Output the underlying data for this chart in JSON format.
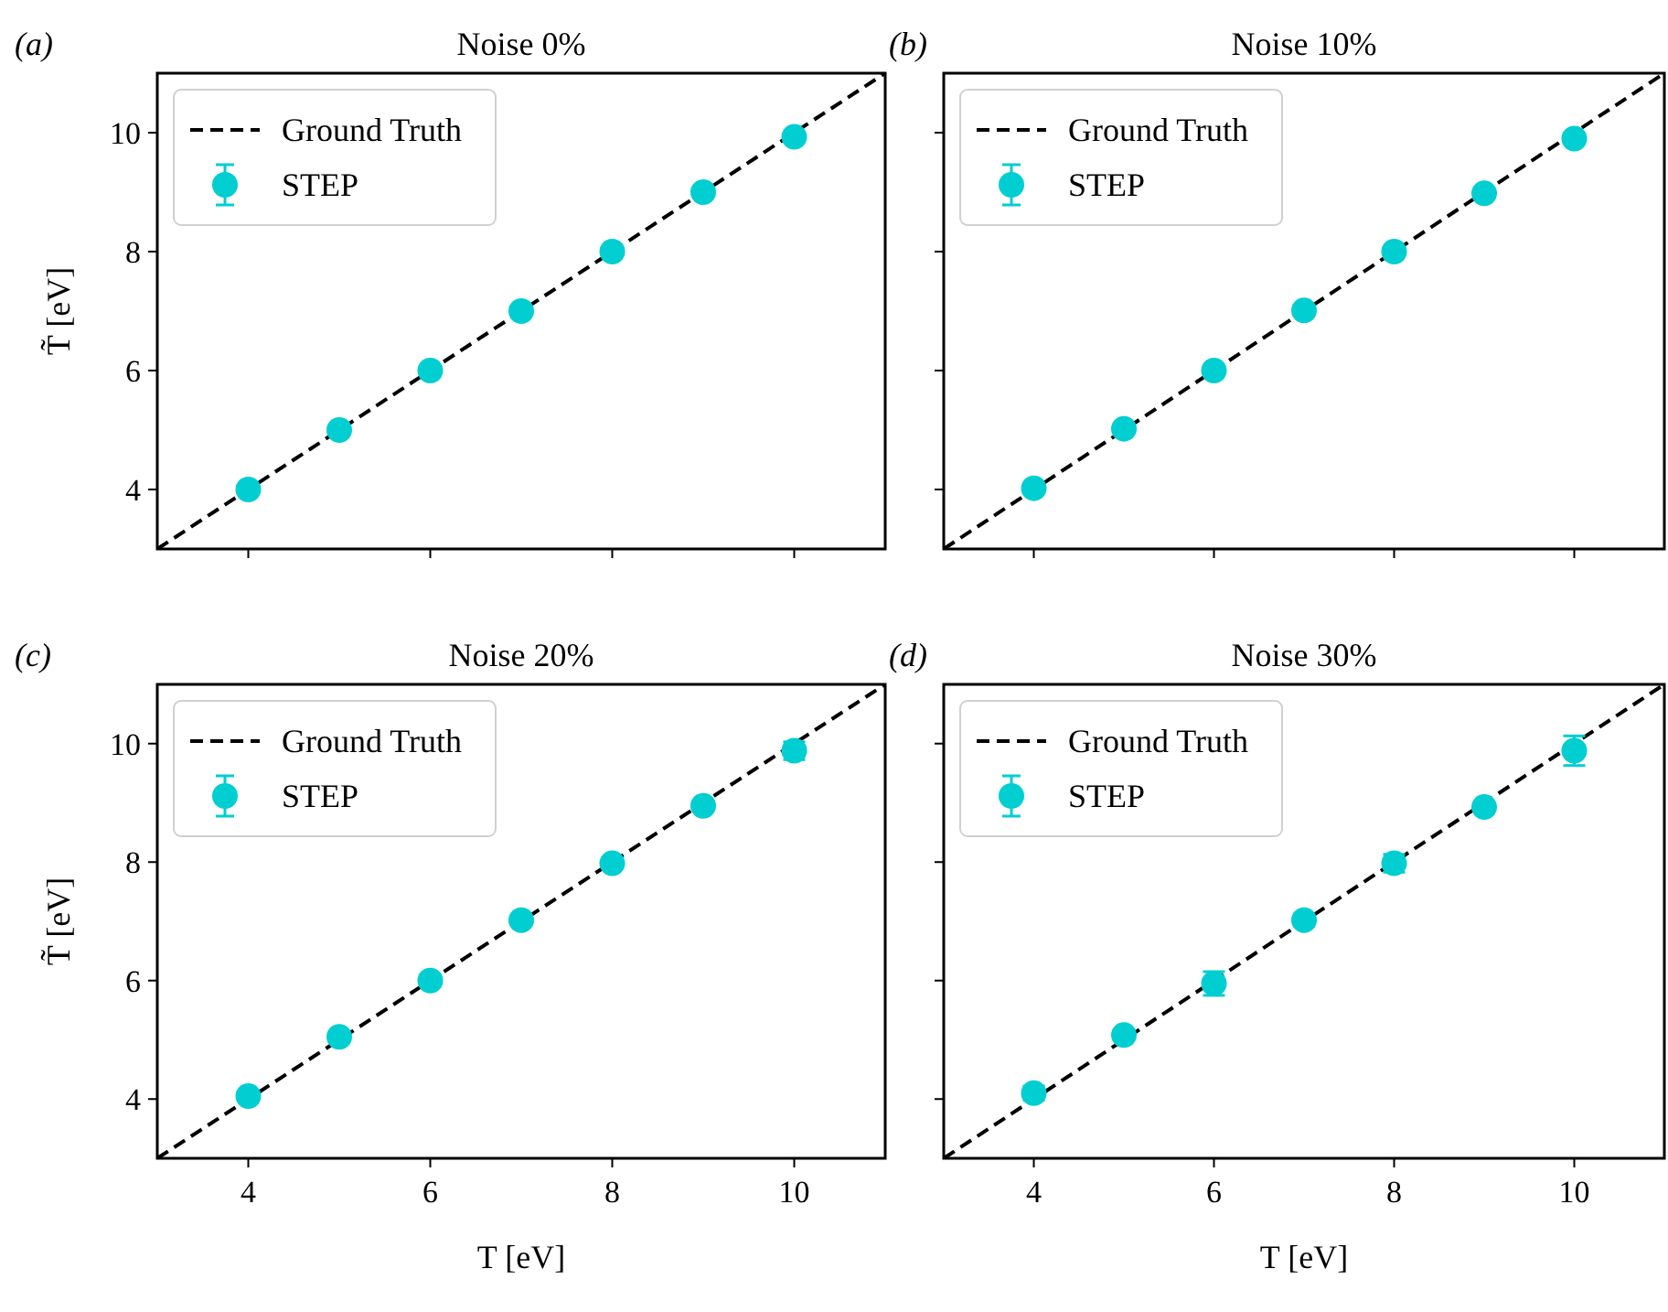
{
  "chart_data": [
    {
      "type": "scatter",
      "title": "Noise 0%",
      "annotations": [
        "(a)"
      ],
      "ylabel": "T̃ [eV]",
      "xlim": [
        3,
        11
      ],
      "ylim": [
        3,
        11
      ],
      "xticks": [
        4,
        6,
        8,
        10
      ],
      "yticks": [
        4,
        6,
        8,
        10
      ],
      "tick_labels": "y",
      "legend": "top left",
      "grid": false,
      "series": [
        {
          "name": "Ground Truth",
          "type": "line",
          "color": "#000000",
          "line_style": "dashed",
          "x": [
            3,
            11
          ],
          "values": [
            3,
            11
          ]
        },
        {
          "name": "STEP",
          "color": "#00ced1",
          "marker": "circle",
          "x": [
            4,
            5,
            6,
            7,
            8,
            9,
            10
          ],
          "values": [
            4,
            5,
            6,
            7,
            8,
            9,
            9.93
          ],
          "errors": [
            0.02,
            0.02,
            0.02,
            0.02,
            0.02,
            0.02,
            0.03
          ]
        }
      ]
    },
    {
      "type": "scatter",
      "title": "Noise 10%",
      "annotations": [
        "(b)"
      ],
      "xlim": [
        3,
        11
      ],
      "ylim": [
        3,
        11
      ],
      "xticks": [
        4,
        6,
        8,
        10
      ],
      "yticks": [
        4,
        6,
        8,
        10
      ],
      "tick_labels": false,
      "legend": "top left",
      "grid": false,
      "series": [
        {
          "name": "Ground Truth",
          "type": "line",
          "color": "#000000",
          "line_style": "dashed",
          "x": [
            3,
            11
          ],
          "values": [
            3,
            11
          ]
        },
        {
          "name": "STEP",
          "color": "#00ced1",
          "marker": "circle",
          "x": [
            4,
            5,
            6,
            7,
            8,
            9,
            10
          ],
          "values": [
            4.02,
            5.02,
            6,
            7.01,
            8,
            8.98,
            9.9
          ],
          "errors": [
            0.04,
            0.04,
            0.04,
            0.04,
            0.04,
            0.04,
            0.05
          ]
        }
      ]
    },
    {
      "type": "scatter",
      "title": "Noise 20%",
      "annotations": [
        "(c)"
      ],
      "xlabel": "T [eV]",
      "ylabel": "T̃ [eV]",
      "xlim": [
        3,
        11
      ],
      "ylim": [
        3,
        11
      ],
      "xticks": [
        4,
        6,
        8,
        10
      ],
      "yticks": [
        4,
        6,
        8,
        10
      ],
      "legend": "top left",
      "grid": false,
      "series": [
        {
          "name": "Ground Truth",
          "type": "line",
          "color": "#000000",
          "line_style": "dashed",
          "x": [
            3,
            11
          ],
          "values": [
            3,
            11
          ]
        },
        {
          "name": "STEP",
          "color": "#00ced1",
          "marker": "circle",
          "x": [
            4,
            5,
            6,
            7,
            8,
            9,
            10
          ],
          "values": [
            4.05,
            5.05,
            6,
            7.02,
            7.98,
            8.95,
            9.88
          ],
          "errors": [
            0.06,
            0.05,
            0.1,
            0.06,
            0.06,
            0.05,
            0.15
          ]
        }
      ]
    },
    {
      "type": "scatter",
      "title": "Noise 30%",
      "annotations": [
        "(d)"
      ],
      "xlabel": "T [eV]",
      "xlim": [
        3,
        11
      ],
      "ylim": [
        3,
        11
      ],
      "xticks": [
        4,
        6,
        8,
        10
      ],
      "yticks": [
        4,
        6,
        8,
        10
      ],
      "tick_labels": "x",
      "legend": "top left",
      "grid": false,
      "series": [
        {
          "name": "Ground Truth",
          "type": "line",
          "color": "#000000",
          "line_style": "dashed",
          "x": [
            3,
            11
          ],
          "values": [
            3,
            11
          ]
        },
        {
          "name": "STEP",
          "color": "#00ced1",
          "marker": "circle",
          "x": [
            4,
            5,
            6,
            7,
            8,
            9,
            10
          ],
          "values": [
            4.1,
            5.08,
            5.95,
            7.02,
            7.98,
            8.93,
            9.88
          ],
          "errors": [
            0.12,
            0.06,
            0.2,
            0.1,
            0.15,
            0.06,
            0.25
          ]
        }
      ]
    }
  ]
}
